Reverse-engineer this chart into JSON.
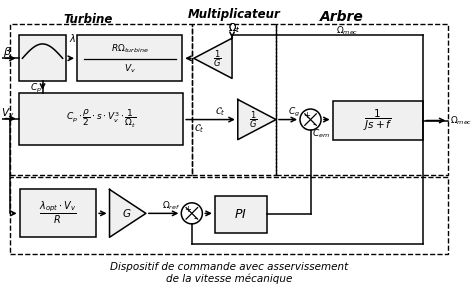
{
  "bg_color": "#ffffff",
  "turbine_label": "Turbine",
  "multiplicateur_label": "Multiplicateur",
  "arbre_label": "Arbre",
  "caption_line1": "Dispositif de commande avec asservissement",
  "caption_line2": "de la vitesse mécanique",
  "regions": {
    "turbine": [
      8,
      18,
      190,
      158
    ],
    "multiplicateur": [
      198,
      18,
      88,
      158
    ],
    "arbre": [
      286,
      18,
      180,
      158
    ],
    "control": [
      8,
      178,
      458,
      80
    ]
  }
}
